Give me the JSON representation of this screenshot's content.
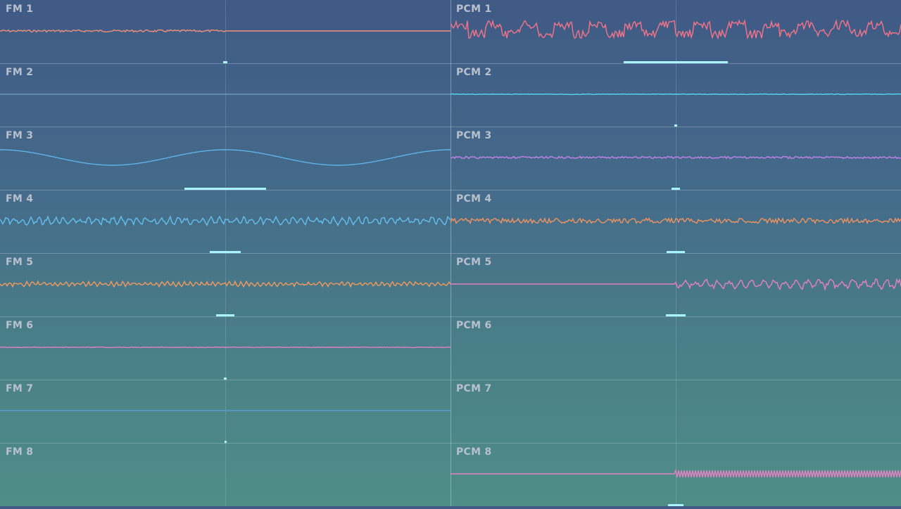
{
  "channels": [
    {
      "label": "FM 1",
      "color": "#f0907a",
      "style": "noise-then-flat",
      "amp": 1.5,
      "freq": 90,
      "marker_width": 0.01
    },
    {
      "label": "FM 2",
      "color": "#6a98c0",
      "style": "flat",
      "amp": 0,
      "freq": 0,
      "marker_width": 0
    },
    {
      "label": "FM 3",
      "color": "#5fb3e8",
      "style": "slow-wave",
      "amp": 11,
      "freq": 1,
      "marker_width": 0.18
    },
    {
      "label": "FM 4",
      "color": "#64c0ee",
      "style": "busy",
      "amp": 6,
      "freq": 55,
      "marker_width": 0.07
    },
    {
      "label": "FM 5",
      "color": "#f19a5e",
      "style": "busy",
      "amp": 3.5,
      "freq": 80,
      "marker_width": 0.04
    },
    {
      "label": "FM 6",
      "color": "#e57ec8",
      "style": "flat-small",
      "amp": 0.8,
      "freq": 60,
      "marker_width": 0.005
    },
    {
      "label": "FM 7",
      "color": "#5a9ad0",
      "style": "flat",
      "amp": 0,
      "freq": 0,
      "marker_width": 0.002
    },
    {
      "label": "FM 8",
      "color": "#5a9ad0",
      "style": "none",
      "amp": 0,
      "freq": 0,
      "marker_width": 0
    },
    {
      "label": "PCM 1",
      "color": "#f57388",
      "style": "square-noise",
      "amp": 14,
      "freq": 13,
      "marker_width": 0.23
    },
    {
      "label": "PCM 2",
      "color": "#56d9ee",
      "style": "flat-small",
      "amp": 0.8,
      "freq": 90,
      "marker_width": 0.005
    },
    {
      "label": "PCM 3",
      "color": "#c383e8",
      "style": "noise",
      "amp": 1.5,
      "freq": 120,
      "marker_width": 0.02
    },
    {
      "label": "PCM 4",
      "color": "#ef9360",
      "style": "noise",
      "amp": 3.5,
      "freq": 110,
      "marker_width": 0.04
    },
    {
      "label": "PCM 5",
      "color": "#e680c6",
      "style": "flat-then-wave",
      "amp": 7,
      "freq": 40,
      "marker_width": 0.045
    },
    {
      "label": "PCM 6",
      "color": "#5a9ad0",
      "style": "none",
      "amp": 0,
      "freq": 0,
      "marker_width": 0
    },
    {
      "label": "PCM 7",
      "color": "#5a9ad0",
      "style": "none",
      "amp": 0,
      "freq": 0,
      "marker_width": 0
    },
    {
      "label": "PCM 8",
      "color": "#e680c6",
      "style": "flat-then-zigzag",
      "amp": 5,
      "freq": 75,
      "marker_width": 0.035
    }
  ]
}
